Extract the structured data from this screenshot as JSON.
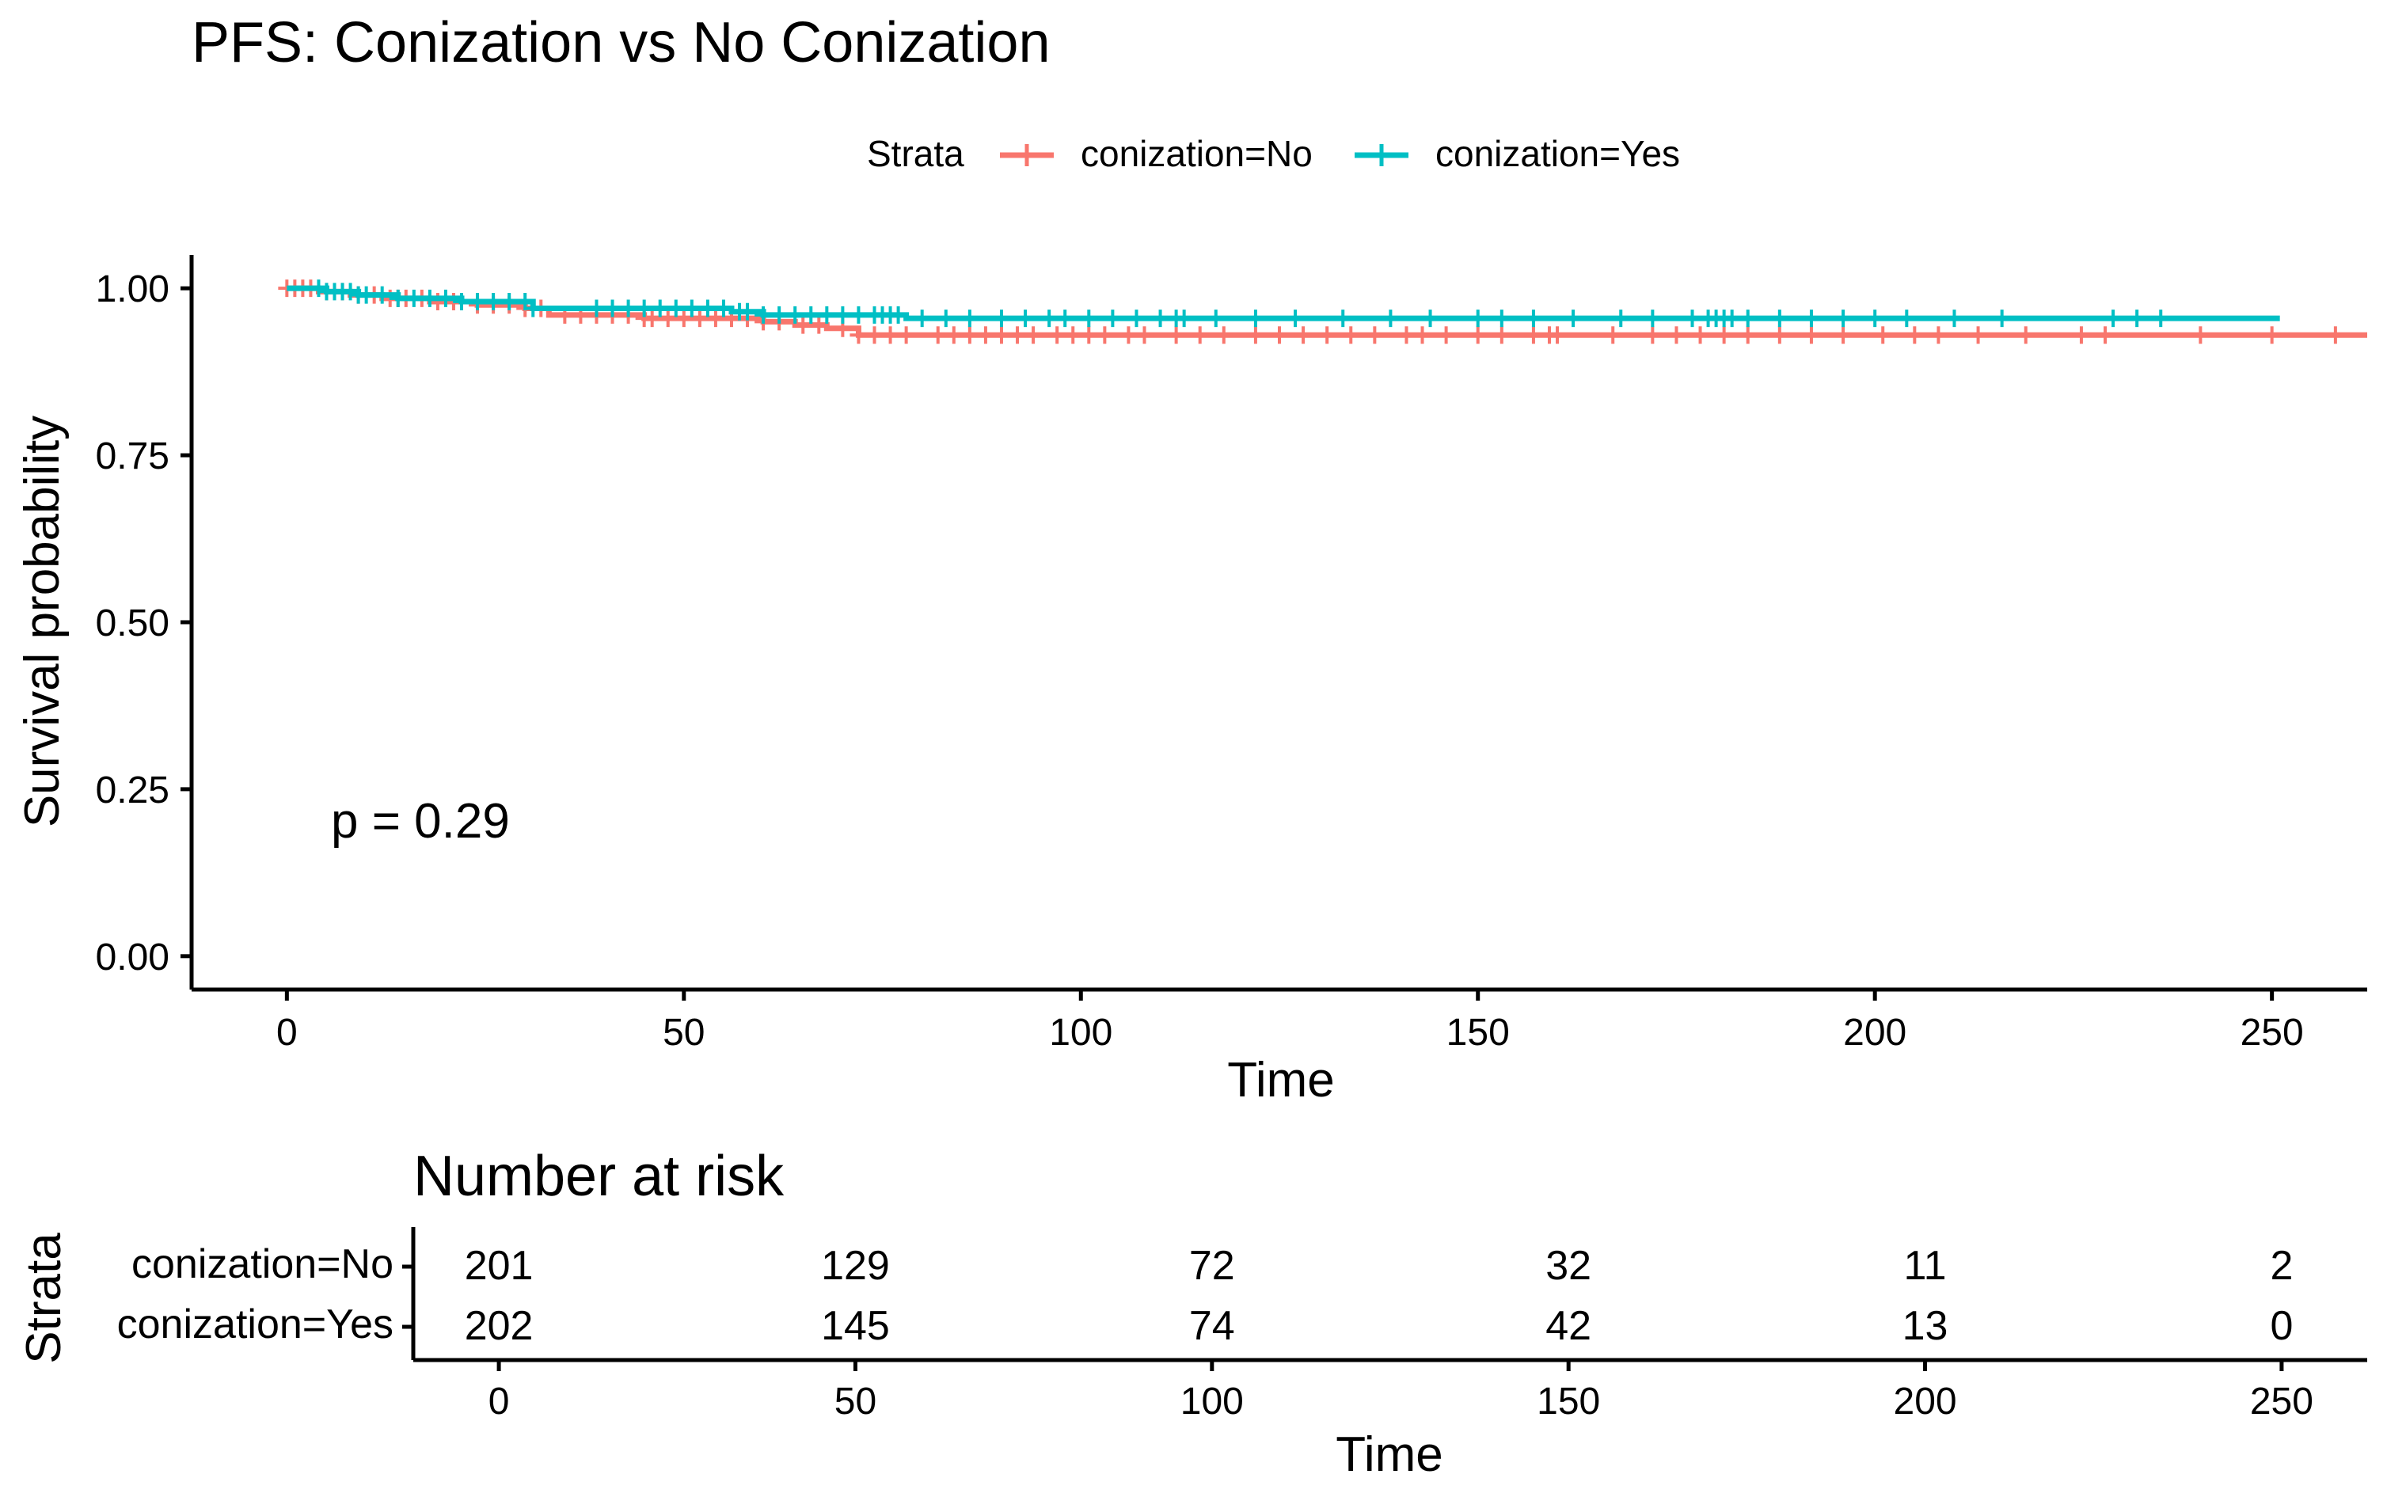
{
  "colors": {
    "No": "#F8766D",
    "Yes": "#00BFC4",
    "axis": "#000000"
  },
  "legend": {
    "title": "Strata",
    "placement": "top"
  },
  "chart_data": [
    {
      "type": "line",
      "title": "PFS: Conization vs No Conization",
      "xlabel": "Time",
      "ylabel": "Survival probability",
      "xlim": [
        -12,
        262
      ],
      "ylim": [
        -0.05,
        1.05
      ],
      "xticks": [
        0,
        50,
        100,
        150,
        200,
        250
      ],
      "yticks": [
        0,
        0.25,
        0.5,
        0.75,
        1.0
      ],
      "ytick_labels": [
        "0.00",
        "0.25",
        "0.50",
        "0.75",
        "1.00"
      ],
      "grid": false,
      "annotation": "p = 0.29",
      "series": [
        {
          "name": "conization=No",
          "color": "#F8766D",
          "steps": [
            [
              0,
              1.0
            ],
            [
              4,
              0.995
            ],
            [
              8,
              0.99
            ],
            [
              12,
              0.985
            ],
            [
              18,
              0.98
            ],
            [
              24,
              0.975
            ],
            [
              30,
              0.97
            ],
            [
              33,
              0.96
            ],
            [
              45,
              0.955
            ],
            [
              60,
              0.95
            ],
            [
              64,
              0.945
            ],
            [
              68,
              0.94
            ],
            [
              72,
              0.93
            ],
            [
              262,
              0.93
            ]
          ],
          "censor_times": [
            0,
            1,
            2,
            3,
            5,
            7,
            9,
            11,
            13,
            14,
            15,
            17,
            19,
            21,
            22,
            24,
            26,
            28,
            30,
            32,
            35,
            37,
            39,
            41,
            43,
            45,
            46,
            48,
            50,
            52,
            54,
            56,
            58,
            60,
            62,
            65,
            67,
            70,
            72,
            74,
            76,
            78,
            82,
            84,
            86,
            88,
            90,
            92,
            94,
            97,
            99,
            101,
            103,
            106,
            108,
            112,
            115,
            118,
            122,
            125,
            128,
            131,
            134,
            137,
            141,
            143,
            146,
            150,
            153,
            157,
            159,
            160,
            167,
            172,
            175,
            178,
            181,
            184,
            188,
            192,
            196,
            201,
            205,
            208,
            213,
            219,
            226,
            229,
            241,
            250,
            258
          ]
        },
        {
          "name": "conization=Yes",
          "color": "#00BFC4",
          "steps": [
            [
              0,
              1.0
            ],
            [
              5,
              0.995
            ],
            [
              9,
              0.99
            ],
            [
              14,
              0.985
            ],
            [
              22,
              0.98
            ],
            [
              31,
              0.97
            ],
            [
              40,
              0.97
            ],
            [
              56,
              0.965
            ],
            [
              60,
              0.96
            ],
            [
              75,
              0.96
            ],
            [
              78,
              0.955
            ],
            [
              251,
              0.955
            ]
          ],
          "censor_times": [
            4,
            5,
            6,
            7,
            8,
            9,
            10,
            12,
            14,
            16,
            18,
            20,
            22,
            24,
            26,
            28,
            30,
            31,
            39,
            41,
            43,
            45,
            47,
            49,
            51,
            53,
            55,
            57,
            58,
            60,
            62,
            64,
            66,
            68,
            70,
            72,
            74,
            75,
            76,
            77,
            80,
            83,
            86,
            90,
            93,
            96,
            98,
            101,
            104,
            107,
            110,
            112,
            113,
            117,
            122,
            127,
            133,
            139,
            144,
            150,
            153,
            157,
            162,
            168,
            172,
            177,
            179,
            180,
            181,
            182,
            184,
            188,
            192,
            196,
            200,
            204,
            210,
            216,
            230,
            233,
            236
          ]
        }
      ]
    },
    {
      "type": "table",
      "title": "Number at risk",
      "xlabel": "Time",
      "ylabel": "Strata",
      "xlim": [
        -12,
        262
      ],
      "xticks": [
        0,
        50,
        100,
        150,
        200,
        250
      ],
      "rows": [
        {
          "name": "conization=No",
          "color": "#F8766D",
          "values": [
            201,
            129,
            72,
            32,
            11,
            2
          ]
        },
        {
          "name": "conization=Yes",
          "color": "#00BFC4",
          "values": [
            202,
            145,
            74,
            42,
            13,
            0
          ]
        }
      ]
    }
  ]
}
